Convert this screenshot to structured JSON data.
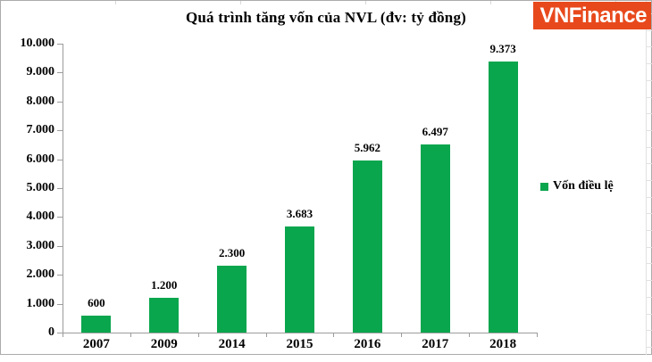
{
  "logo": {
    "text": "VNFinance",
    "bg_color": "#E8491C",
    "text_color": "#FFFFFF"
  },
  "chart_data": {
    "type": "bar",
    "title": "Quá trình tăng vốn của NVL (đv: tỷ đồng)",
    "categories": [
      "2007",
      "2009",
      "2014",
      "2015",
      "2016",
      "2017",
      "2018"
    ],
    "values": [
      600,
      1200,
      2300,
      3683,
      5962,
      6497,
      9373
    ],
    "value_labels": [
      "600",
      "1.200",
      "2.300",
      "3.683",
      "5.962",
      "6.497",
      "9.373"
    ],
    "y_tick_labels": [
      "0",
      "1.000",
      "2.000",
      "3.000",
      "4.000",
      "5.000",
      "6.000",
      "7.000",
      "8.000",
      "9.000",
      "10.000"
    ],
    "ylim": [
      0,
      10000
    ],
    "y_step": 1000,
    "xlabel": "",
    "ylabel": "",
    "grid": false,
    "bar_color": "#0AA64E",
    "legend_position": "right",
    "legend": [
      {
        "label": "Vốn điều lệ",
        "color": "#0AA64E"
      }
    ]
  }
}
